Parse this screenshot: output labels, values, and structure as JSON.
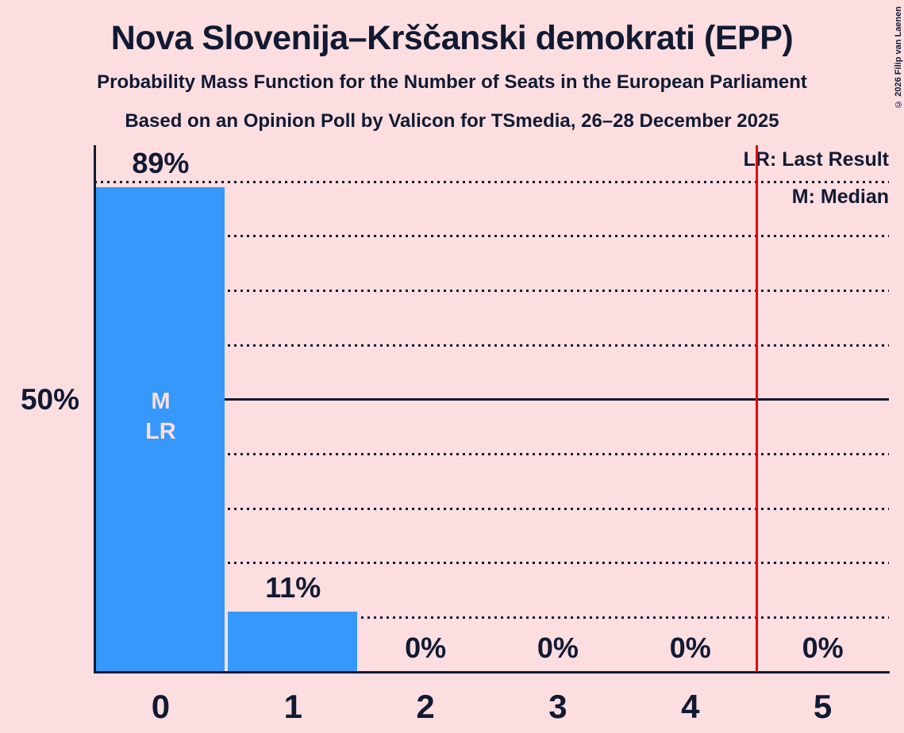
{
  "header": {
    "title": "Nova Slovenija–Krščanski demokrati (EPP)",
    "subtitle1": "Probability Mass Function for the Number of Seats in the European Parliament",
    "subtitle2": "Based on an Opinion Poll by Valicon for TSmedia, 26–28 December 2025"
  },
  "copyright": "© 2026 Filip van Laenen",
  "legend": {
    "last_result": "LR: Last Result",
    "median": "M: Median"
  },
  "y_axis": {
    "tick_label": "50%"
  },
  "colors": {
    "background": "#fcdee1",
    "bar": "#3598fa",
    "ink": "#121a32",
    "threshold_line": "#ee0000",
    "bar_label": "#fcdee1"
  },
  "chart_data": {
    "type": "bar",
    "title": "Nova Slovenija–Krščanski demokrati (EPP)",
    "subtitle": "Probability Mass Function for the Number of Seats in the European Parliament",
    "source_line": "Based on an Opinion Poll by Valicon for TSmedia, 26–28 December 2025",
    "categories": [
      "0",
      "1",
      "2",
      "3",
      "4",
      "5"
    ],
    "values": [
      89,
      11,
      0,
      0,
      0,
      0
    ],
    "value_labels": [
      "89%",
      "11%",
      "0%",
      "0%",
      "0%",
      "0%"
    ],
    "ylim": [
      0,
      97
    ],
    "y_gridlines_pct": [
      10,
      20,
      30,
      40,
      50,
      60,
      70,
      80,
      90
    ],
    "solid_gridline_pct": 50,
    "y_axis_tick": {
      "pct": 50,
      "label": "50%"
    },
    "median_category": "0",
    "last_result_category": "0",
    "bar_annotation": {
      "bar_index": 0,
      "lines": [
        "M",
        "LR"
      ]
    },
    "threshold_line_x": 4.5,
    "legend_entries": [
      "LR: Last Result",
      "M: Median"
    ],
    "grid": "dotted horizontal lines every 10%, solid at 50%",
    "legend_position": "top-right"
  }
}
